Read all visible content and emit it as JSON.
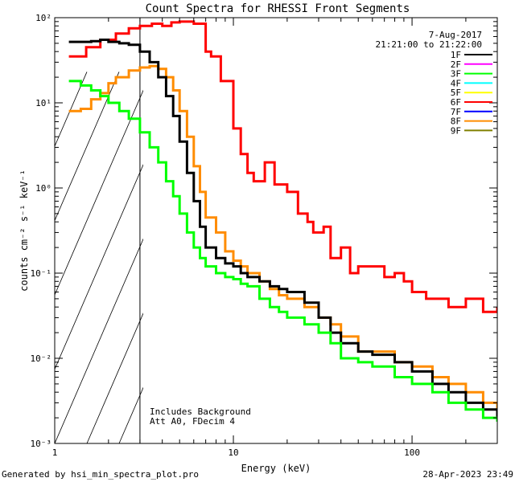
{
  "chart_data": {
    "type": "line",
    "title": "Count Spectra for RHESSI Front Segments",
    "xlabel": "Energy (keV)",
    "ylabel": "counts cm⁻² s⁻¹ keV⁻¹",
    "xscale": "log",
    "yscale": "log",
    "xlim": [
      1,
      300
    ],
    "ylim": [
      0.001,
      100
    ],
    "x_ticks": [
      {
        "v": 1,
        "label": "1"
      },
      {
        "v": 10,
        "label": "10"
      },
      {
        "v": 100,
        "label": "100"
      }
    ],
    "y_ticks": [
      {
        "v": 0.001,
        "label": "10⁻³"
      },
      {
        "v": 0.01,
        "label": "10⁻²"
      },
      {
        "v": 0.1,
        "label": "10⁻¹"
      },
      {
        "v": 1,
        "label": "10⁰"
      },
      {
        "v": 10,
        "label": "10¹"
      },
      {
        "v": 100,
        "label": "10²"
      }
    ],
    "date": "7-Aug-2017",
    "time_range": "21:21:00 to 21:22:00",
    "threshold_energy_kev": 3,
    "legend_position": "top-right",
    "legend": [
      {
        "name": "1F",
        "color": "#000000"
      },
      {
        "name": "2F",
        "color": "#ff00ff"
      },
      {
        "name": "3F",
        "color": "#00ff00"
      },
      {
        "name": "4F",
        "color": "#00ffff"
      },
      {
        "name": "5F",
        "color": "#ffff00"
      },
      {
        "name": "6F",
        "color": "#ff0000"
      },
      {
        "name": "7F",
        "color": "#0000ff"
      },
      {
        "name": "8F",
        "color": "#ff8c00"
      },
      {
        "name": "9F",
        "color": "#808000"
      }
    ],
    "annotations": [
      "Includes Background",
      "Att A0, FDecim 4"
    ],
    "series": [
      {
        "name": "6F",
        "color": "#ff0000",
        "x": [
          1.2,
          1.5,
          1.8,
          2.2,
          2.6,
          3.0,
          3.5,
          4.0,
          4.5,
          5.0,
          6.0,
          7.0,
          7.5,
          8.5,
          10,
          11,
          12,
          13,
          15,
          17,
          20,
          23,
          26,
          28,
          32,
          35,
          40,
          45,
          50,
          60,
          70,
          80,
          90,
          100,
          120,
          140,
          160,
          200,
          250,
          300
        ],
        "y": [
          35,
          45,
          55,
          65,
          75,
          80,
          85,
          80,
          88,
          90,
          85,
          40,
          35,
          18,
          5,
          2.5,
          1.5,
          1.2,
          2.0,
          1.1,
          0.9,
          0.5,
          0.4,
          0.3,
          0.35,
          0.15,
          0.2,
          0.1,
          0.12,
          0.12,
          0.09,
          0.1,
          0.08,
          0.06,
          0.05,
          0.05,
          0.04,
          0.05,
          0.035,
          0.04
        ]
      },
      {
        "name": "8F",
        "color": "#ff8c00",
        "x": [
          1.2,
          1.4,
          1.6,
          1.8,
          2.0,
          2.2,
          2.6,
          3.0,
          3.4,
          3.8,
          4.2,
          4.6,
          5.0,
          5.5,
          6.0,
          6.5,
          7.0,
          8.0,
          9.0,
          10,
          11,
          12,
          14,
          16,
          18,
          20,
          25,
          30,
          35,
          40,
          50,
          60,
          80,
          100,
          130,
          160,
          200,
          250,
          300
        ],
        "y": [
          8,
          8.5,
          11,
          13,
          17,
          20,
          24,
          26,
          27,
          25,
          20,
          14,
          8,
          4,
          1.8,
          0.9,
          0.45,
          0.3,
          0.18,
          0.14,
          0.12,
          0.1,
          0.08,
          0.065,
          0.055,
          0.05,
          0.04,
          0.03,
          0.025,
          0.018,
          0.012,
          0.012,
          0.009,
          0.008,
          0.006,
          0.005,
          0.004,
          0.003,
          0.002
        ]
      },
      {
        "name": "1F",
        "color": "#000000",
        "x": [
          1.2,
          1.4,
          1.6,
          1.8,
          2.0,
          2.3,
          2.6,
          3.0,
          3.4,
          3.8,
          4.2,
          4.6,
          5.0,
          5.5,
          6.0,
          6.5,
          7.0,
          8.0,
          9.0,
          10,
          11,
          12,
          14,
          16,
          18,
          20,
          25,
          30,
          35,
          40,
          50,
          60,
          80,
          100,
          130,
          160,
          200,
          250,
          300
        ],
        "y": [
          52,
          52,
          53,
          55,
          52,
          50,
          48,
          40,
          30,
          20,
          12,
          7,
          3.5,
          1.5,
          0.7,
          0.35,
          0.2,
          0.15,
          0.13,
          0.12,
          0.1,
          0.09,
          0.08,
          0.07,
          0.065,
          0.06,
          0.045,
          0.03,
          0.02,
          0.015,
          0.012,
          0.011,
          0.009,
          0.007,
          0.005,
          0.004,
          0.003,
          0.0025,
          0.002
        ]
      },
      {
        "name": "3F",
        "color": "#00ff00",
        "x": [
          1.2,
          1.4,
          1.6,
          1.8,
          2.0,
          2.3,
          2.6,
          3.0,
          3.4,
          3.8,
          4.2,
          4.6,
          5.0,
          5.5,
          6.0,
          6.5,
          7.0,
          8.0,
          9.0,
          10,
          11,
          12,
          14,
          16,
          18,
          20,
          25,
          30,
          35,
          40,
          50,
          60,
          80,
          100,
          130,
          160,
          200,
          250,
          300
        ],
        "y": [
          18,
          16,
          14,
          12,
          10,
          8,
          6.5,
          4.5,
          3,
          2,
          1.2,
          0.8,
          0.5,
          0.3,
          0.2,
          0.15,
          0.12,
          0.1,
          0.09,
          0.085,
          0.075,
          0.07,
          0.05,
          0.04,
          0.035,
          0.03,
          0.025,
          0.02,
          0.015,
          0.01,
          0.009,
          0.008,
          0.006,
          0.005,
          0.004,
          0.003,
          0.0025,
          0.002,
          0.0018
        ]
      }
    ]
  },
  "footer": {
    "left": "Generated by hsi_min_spectra_plot.pro",
    "right": "28-Apr-2023 23:49"
  }
}
